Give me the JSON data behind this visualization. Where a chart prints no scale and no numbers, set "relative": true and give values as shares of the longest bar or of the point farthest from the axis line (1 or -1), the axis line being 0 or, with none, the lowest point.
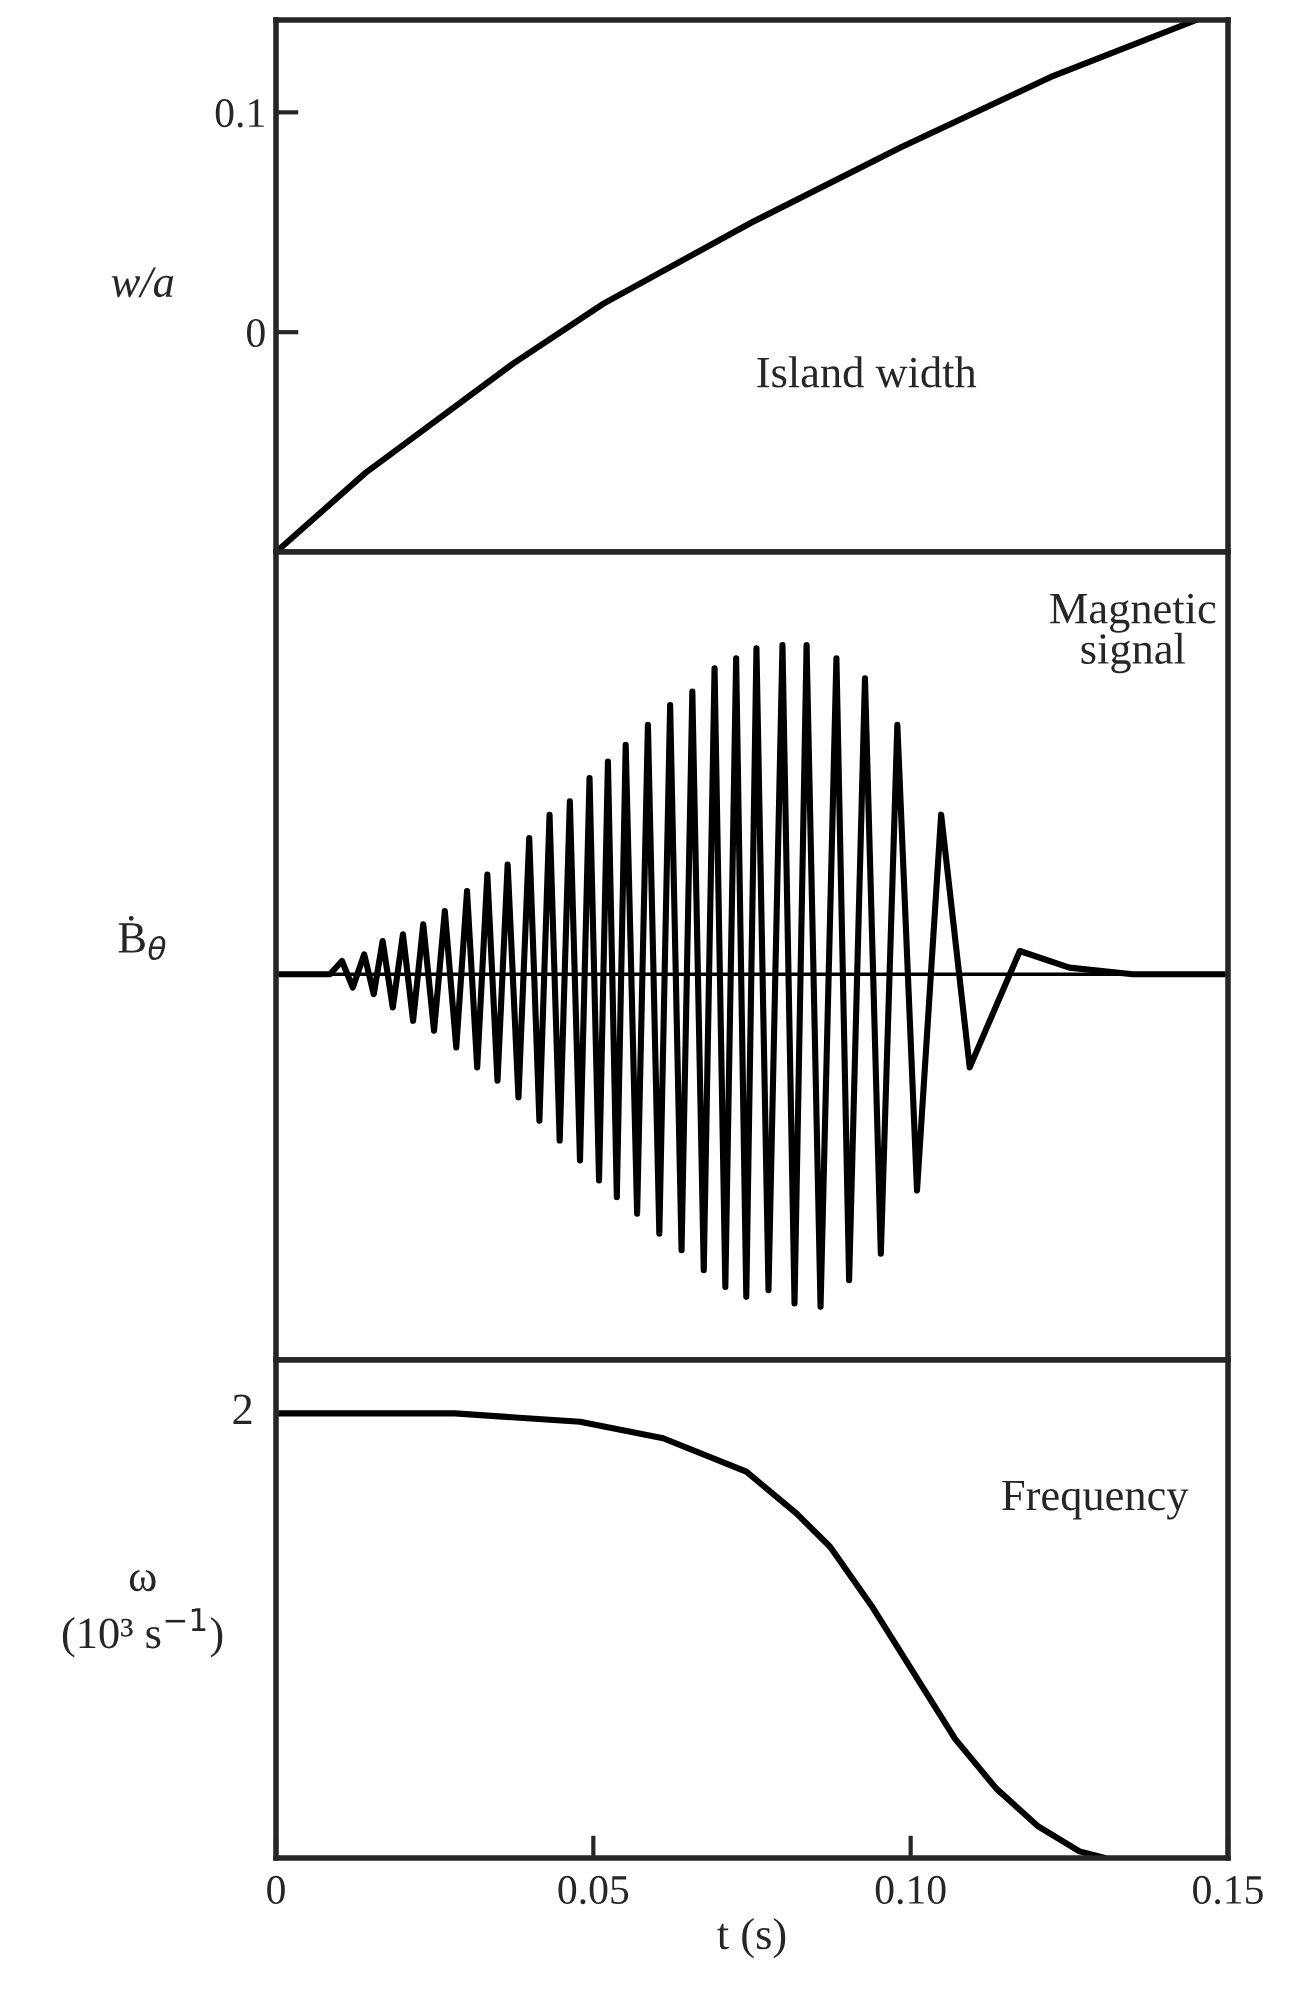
{
  "chart_data": [
    {
      "type": "line",
      "ylabel": "w/a",
      "annotations": [
        "Island width"
      ],
      "xlim": [
        0,
        0.15
      ],
      "ylim": [
        -0.1,
        0.142
      ],
      "yticks": [
        0,
        0.1
      ],
      "tick_labels": "y",
      "grid": false,
      "legend": false,
      "series": [
        {
          "color": "#000000",
          "x": [
            0,
            0.0141,
            0.0375,
            0.0516,
            0.075,
            0.0984,
            0.122,
            0.145
          ],
          "values": [
            -0.1,
            -0.064,
            -0.014,
            0.013,
            0.05,
            0.084,
            0.116,
            0.142
          ]
        }
      ]
    },
    {
      "type": "line",
      "relative": true,
      "ylabel": "Ḃ$_{θ}$",
      "annotations": [
        "Magnetic\nsignal"
      ],
      "xlim": [
        0,
        0.15
      ],
      "tick_labels": false,
      "grid": false,
      "legend": false,
      "ref_lines": [
        {
          "axis": "y",
          "value": 0,
          "color": "#000000"
        }
      ],
      "series": [
        {
          "color": "#000000",
          "x": [
            0,
            0.0085,
            0.0104,
            0.0121,
            0.0139,
            0.0154,
            0.0168,
            0.0184,
            0.02,
            0.0216,
            0.0232,
            0.0249,
            0.0266,
            0.0284,
            0.0301,
            0.0317,
            0.0333,
            0.0349,
            0.0365,
            0.0382,
            0.0399,
            0.0415,
            0.0431,
            0.0447,
            0.0463,
            0.0479,
            0.0494,
            0.0509,
            0.0523,
            0.0537,
            0.0551,
            0.0569,
            0.0586,
            0.0604,
            0.0621,
            0.0639,
            0.0656,
            0.0674,
            0.0691,
            0.0708,
            0.0725,
            0.0741,
            0.0757,
            0.0776,
            0.0798,
            0.0817,
            0.0836,
            0.0858,
            0.0883,
            0.0903,
            0.0928,
            0.0953,
            0.0979,
            0.101,
            0.1048,
            0.1093,
            0.1172,
            0.125,
            0.135,
            0.15
          ],
          "values": [
            0,
            0,
            0.04,
            -0.04,
            0.06,
            -0.06,
            0.1,
            -0.1,
            0.12,
            -0.14,
            0.15,
            -0.17,
            0.19,
            -0.22,
            0.25,
            -0.28,
            0.3,
            -0.32,
            0.33,
            -0.37,
            0.41,
            -0.44,
            0.48,
            -0.5,
            0.52,
            -0.56,
            0.59,
            -0.62,
            0.64,
            -0.67,
            0.69,
            -0.72,
            0.75,
            -0.78,
            0.81,
            -0.83,
            0.85,
            -0.89,
            0.92,
            -0.94,
            0.95,
            -0.97,
            0.98,
            -0.95,
            0.99,
            -0.99,
            0.99,
            -1.0,
            0.95,
            -0.92,
            0.89,
            -0.84,
            0.75,
            -0.65,
            0.48,
            -0.28,
            0.07,
            0.02,
            0,
            0
          ]
        }
      ]
    },
    {
      "type": "line",
      "relative": true,
      "ylabel": "ω\n(10³ s$^{−1}$)",
      "xlabel": "t (s)",
      "annotations": [
        "Frequency",
        {
          "text": "2",
          "x": 0,
          "y": 1
        }
      ],
      "xlim": [
        0,
        0.15
      ],
      "xticks": [
        0,
        0.05,
        {
          "value": 0.1,
          "label": "0.10"
        },
        0.15
      ],
      "tick_labels": "x",
      "grid": false,
      "legend": false,
      "series": [
        {
          "color": "#000000",
          "x": [
            0,
            0.0282,
            0.0479,
            0.061,
            0.0741,
            0.082,
            0.0873,
            0.0938,
            0.1004,
            0.107,
            0.1135,
            0.1201,
            0.1266,
            0.1306
          ],
          "values": [
            1,
            1,
            0.981,
            0.944,
            0.869,
            0.775,
            0.7,
            0.568,
            0.418,
            0.268,
            0.156,
            0.071,
            0.015,
            0
          ]
        }
      ]
    }
  ]
}
